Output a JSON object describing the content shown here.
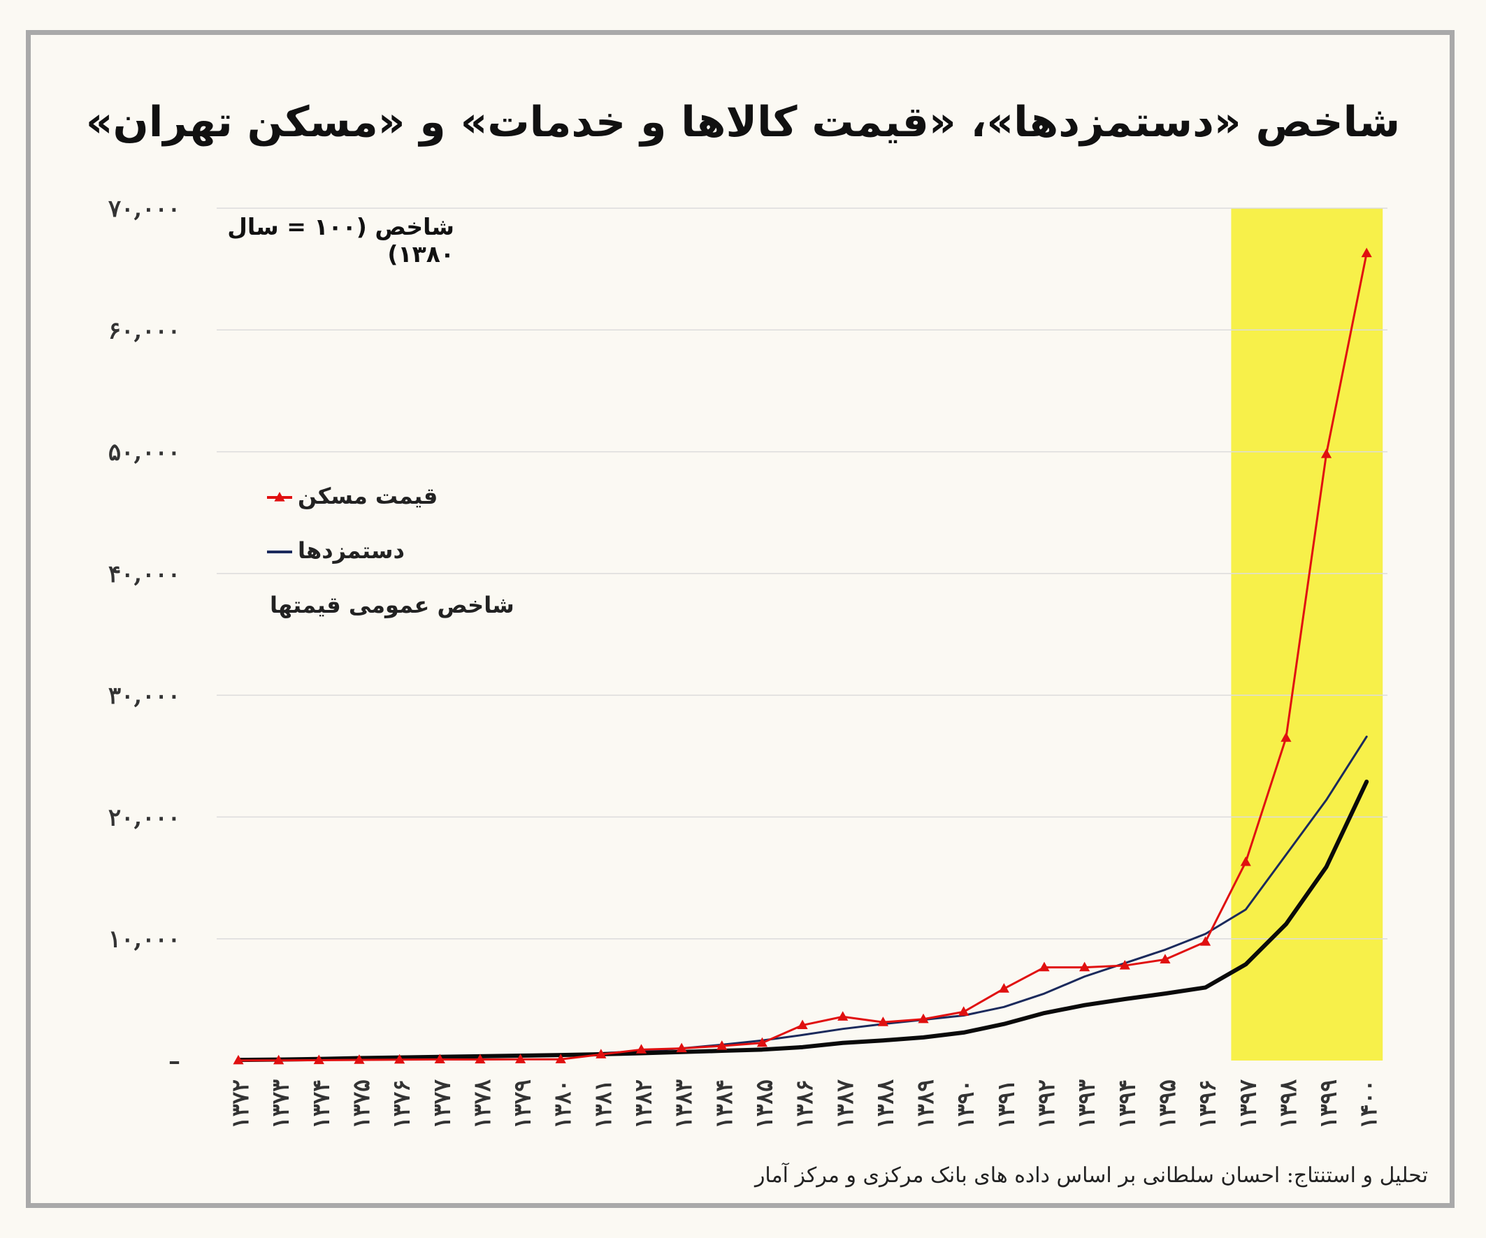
{
  "title": "شاخص «دستمزدها»، «قیمت کالاها و خدمات» و «مسکن تهران»",
  "subtitle": "شاخص (۱۰۰ = سال ۱۳۸۰)",
  "source": "تحلیل و استنتاج: احسان سلطانی بر اساس داده های بانک مرکزی و مرکز آمار",
  "colors": {
    "housing": "#e01010",
    "wages": "#1b2a5c",
    "cpi": "#0a0a0a",
    "highlight": "#f7f04a",
    "grid": "#dcdcdc"
  },
  "legend": [
    {
      "label": "قیمت مسکن",
      "series": "housing",
      "marker": "triangle"
    },
    {
      "label": "دستمزدها",
      "series": "wages",
      "marker": "none"
    },
    {
      "label": "شاخص عمومی قیمتها",
      "series": "cpi",
      "marker": "none"
    }
  ],
  "chart_data": {
    "type": "line",
    "title": "شاخص «دستمزدها»، «قیمت کالاها و خدمات» و «مسکن تهران»",
    "ylabel": "شاخص (۱۰۰ = سال ۱۳۸۰)",
    "ylim": [
      0,
      70000
    ],
    "yticks": [
      {
        "value": 0,
        "label": "–"
      },
      {
        "value": 10000,
        "label": "۱۰,۰۰۰"
      },
      {
        "value": 20000,
        "label": "۲۰,۰۰۰"
      },
      {
        "value": 30000,
        "label": "۳۰,۰۰۰"
      },
      {
        "value": 40000,
        "label": "۴۰,۰۰۰"
      },
      {
        "value": 50000,
        "label": "۵۰,۰۰۰"
      },
      {
        "value": 60000,
        "label": "۶۰,۰۰۰"
      },
      {
        "value": 70000,
        "label": "۷۰,۰۰۰"
      }
    ],
    "grid": true,
    "legend_position": "left",
    "highlight_range": [
      "۱۳۹۷",
      "۱۴۰۰"
    ],
    "categories": [
      "۱۳۷۲",
      "۱۳۷۳",
      "۱۳۷۴",
      "۱۳۷۵",
      "۱۳۷۶",
      "۱۳۷۷",
      "۱۳۷۸",
      "۱۳۷۹",
      "۱۳۸۰",
      "۱۳۸۱",
      "۱۳۸۲",
      "۱۳۸۳",
      "۱۳۸۴",
      "۱۳۸۵",
      "۱۳۸۶",
      "۱۳۸۷",
      "۱۳۸۸",
      "۱۳۸۹",
      "۱۳۹۰",
      "۱۳۹۱",
      "۱۳۹۲",
      "۱۳۹۳",
      "۱۳۹۴",
      "۱۳۹۵",
      "۱۳۹۶",
      "۱۳۹۷",
      "۱۳۹۸",
      "۱۳۹۹",
      "۱۴۰۰"
    ],
    "series": [
      {
        "name": "قیمت مسکن",
        "key": "housing",
        "marker": "triangle",
        "width": 3,
        "values": [
          10,
          15,
          30,
          50,
          70,
          90,
          85,
          100,
          100,
          500,
          900,
          1000,
          1200,
          1450,
          2900,
          3600,
          3150,
          3400,
          4000,
          5900,
          7650,
          7650,
          7800,
          8300,
          9750,
          16300,
          26500,
          49800,
          66300
        ]
      },
      {
        "name": "دستمزدها",
        "key": "wages",
        "marker": "none",
        "width": 3,
        "values": [
          60,
          80,
          110,
          150,
          200,
          250,
          310,
          380,
          450,
          600,
          780,
          1000,
          1300,
          1650,
          2100,
          2600,
          3000,
          3350,
          3700,
          4400,
          5500,
          6900,
          8000,
          9100,
          10400,
          12400,
          16900,
          21400,
          26600
        ]
      },
      {
        "name": "شاخص عمومی قیمتها",
        "key": "cpi",
        "marker": "none",
        "width": 6,
        "values": [
          50,
          80,
          130,
          200,
          250,
          300,
          350,
          400,
          450,
          520,
          600,
          700,
          800,
          900,
          1100,
          1450,
          1650,
          1900,
          2300,
          3000,
          3900,
          4550,
          5050,
          5500,
          6000,
          7900,
          11200,
          15900,
          22900
        ]
      }
    ]
  }
}
